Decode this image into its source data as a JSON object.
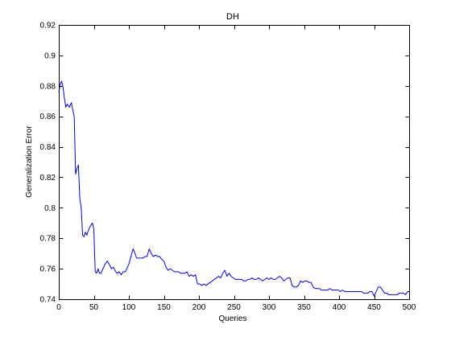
{
  "chart_data": {
    "type": "line",
    "title": "DH",
    "xlabel": "Queries",
    "ylabel": "Generalization Error",
    "xlim": [
      0,
      500
    ],
    "ylim": [
      0.74,
      0.92
    ],
    "xticks": [
      0,
      50,
      100,
      150,
      200,
      250,
      300,
      350,
      400,
      450,
      500
    ],
    "yticks": [
      0.74,
      0.76,
      0.78,
      0.8,
      0.82,
      0.84,
      0.86,
      0.88,
      0.9,
      0.92
    ],
    "ytick_labels": [
      "0.74",
      "0.76",
      "0.78",
      "0.8",
      "0.82",
      "0.84",
      "0.86",
      "0.88",
      "0.9",
      "0.92"
    ],
    "grid": false,
    "colors": {
      "series": "#0000ff",
      "axes": "#000000",
      "background": "#ffffff"
    },
    "series": [
      {
        "x": [
          0,
          2,
          4,
          6,
          8,
          10,
          12,
          15,
          18,
          20,
          22,
          24,
          26,
          28,
          30,
          32,
          34,
          36,
          38,
          40,
          42,
          45,
          48,
          50,
          52,
          54,
          56,
          58,
          60,
          63,
          66,
          69,
          72,
          75,
          78,
          80,
          83,
          86,
          89,
          92,
          95,
          98,
          100,
          103,
          106,
          108,
          111,
          114,
          117,
          120,
          123,
          126,
          129,
          132,
          135,
          138,
          141,
          144,
          147,
          150,
          153,
          156,
          159,
          162,
          165,
          168,
          171,
          174,
          177,
          180,
          183,
          186,
          189,
          192,
          195,
          198,
          201,
          204,
          207,
          210,
          213,
          216,
          219,
          222,
          225,
          228,
          231,
          234,
          237,
          240,
          243,
          246,
          249,
          252,
          255,
          258,
          261,
          264,
          267,
          270,
          273,
          276,
          279,
          282,
          285,
          288,
          291,
          294,
          297,
          300,
          303,
          306,
          309,
          312,
          315,
          318,
          321,
          324,
          327,
          330,
          333,
          336,
          339,
          342,
          345,
          348,
          351,
          354,
          357,
          360,
          363,
          366,
          369,
          372,
          375,
          378,
          381,
          384,
          387,
          390,
          393,
          396,
          399,
          402,
          405,
          408,
          411,
          414,
          417,
          420,
          423,
          426,
          429,
          432,
          435,
          438,
          441,
          444,
          447,
          450,
          453,
          456,
          459,
          462,
          465,
          468,
          471,
          474,
          477,
          480,
          483,
          486,
          489,
          492,
          495,
          498,
          500
        ],
        "y": [
          0.876,
          0.881,
          0.883,
          0.879,
          0.872,
          0.866,
          0.868,
          0.866,
          0.869,
          0.864,
          0.86,
          0.822,
          0.826,
          0.828,
          0.806,
          0.8,
          0.782,
          0.781,
          0.784,
          0.782,
          0.785,
          0.788,
          0.79,
          0.786,
          0.758,
          0.757,
          0.76,
          0.757,
          0.757,
          0.76,
          0.763,
          0.765,
          0.763,
          0.76,
          0.761,
          0.759,
          0.757,
          0.758,
          0.756,
          0.758,
          0.758,
          0.761,
          0.763,
          0.768,
          0.773,
          0.771,
          0.767,
          0.767,
          0.767,
          0.767,
          0.768,
          0.768,
          0.773,
          0.77,
          0.768,
          0.769,
          0.768,
          0.768,
          0.766,
          0.765,
          0.761,
          0.759,
          0.76,
          0.759,
          0.758,
          0.758,
          0.758,
          0.757,
          0.757,
          0.757,
          0.758,
          0.755,
          0.756,
          0.755,
          0.756,
          0.75,
          0.75,
          0.749,
          0.75,
          0.749,
          0.75,
          0.751,
          0.752,
          0.753,
          0.754,
          0.755,
          0.754,
          0.757,
          0.759,
          0.755,
          0.757,
          0.755,
          0.754,
          0.753,
          0.753,
          0.753,
          0.753,
          0.752,
          0.752,
          0.753,
          0.753,
          0.754,
          0.753,
          0.753,
          0.754,
          0.753,
          0.752,
          0.753,
          0.754,
          0.753,
          0.754,
          0.753,
          0.753,
          0.754,
          0.755,
          0.754,
          0.752,
          0.753,
          0.754,
          0.754,
          0.749,
          0.748,
          0.748,
          0.749,
          0.752,
          0.751,
          0.752,
          0.752,
          0.751,
          0.751,
          0.748,
          0.747,
          0.747,
          0.747,
          0.746,
          0.746,
          0.746,
          0.746,
          0.747,
          0.746,
          0.746,
          0.746,
          0.746,
          0.745,
          0.746,
          0.745,
          0.745,
          0.745,
          0.745,
          0.745,
          0.745,
          0.745,
          0.745,
          0.745,
          0.744,
          0.744,
          0.744,
          0.745,
          0.745,
          0.742,
          0.745,
          0.748,
          0.748,
          0.746,
          0.744,
          0.744,
          0.743,
          0.743,
          0.743,
          0.743,
          0.743,
          0.744,
          0.744,
          0.744,
          0.743,
          0.745,
          0.745
        ]
      }
    ]
  }
}
